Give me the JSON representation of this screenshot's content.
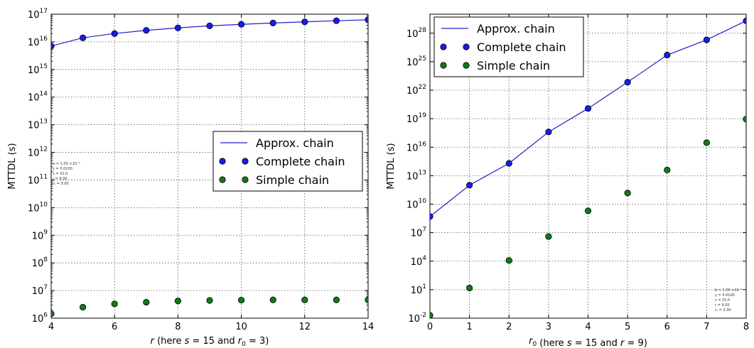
{
  "colors": {
    "approx": "#1f1fcc",
    "complete": "#1a1aee",
    "simple": "#127a12"
  },
  "chart_data": [
    {
      "type": "line",
      "yscale": "log",
      "xlabel": "r (here s = 15 and r0 = 3)",
      "xlabel_parts": {
        "var": "r",
        "mid": " (here ",
        "s": "s",
        "s_val": "15",
        "and": " and ",
        "r0": "r",
        "r0_sub": "0",
        "r0_val": "3",
        "end": ")"
      },
      "ylabel": "MTTDL (s)",
      "xlim": [
        4,
        14
      ],
      "ylim_exp": [
        6,
        17
      ],
      "xticks": [
        "4",
        "6",
        "8",
        "10",
        "12",
        "14"
      ],
      "ytick_exps": [
        "6",
        "7",
        "8",
        "9",
        "10",
        "11",
        "12",
        "13",
        "14",
        "15",
        "16",
        "17"
      ],
      "ytick_base": "10",
      "grid": true,
      "legend_position": "center-right",
      "legend": [
        "Approx. chain",
        "Complete chain",
        "Simple chain"
      ],
      "annotation": [
        "α = 1.00 ×10⁻³",
        "γ = 0.0100",
        "s = 15.0",
        "r = 9.00",
        "r₀ = 3.00"
      ],
      "series": [
        {
          "name": "Approx. chain",
          "kind": "line",
          "x": [
            4,
            5,
            6,
            7,
            8,
            9,
            10,
            11,
            12,
            13,
            14
          ],
          "y": [
            7000000000000000.0,
            1.4e+16,
            2e+16,
            2.6e+16,
            3.2e+16,
            3.8e+16,
            4.3e+16,
            4.8e+16,
            5.3e+16,
            5.8e+16,
            6.3e+16
          ]
        },
        {
          "name": "Complete chain",
          "kind": "marker",
          "x": [
            4,
            5,
            6,
            7,
            8,
            9,
            10,
            11,
            12,
            13,
            14
          ],
          "y": [
            7000000000000000.0,
            1.4e+16,
            2e+16,
            2.6e+16,
            3.2e+16,
            3.8e+16,
            4.3e+16,
            4.8e+16,
            5.3e+16,
            5.8e+16,
            6.3e+16
          ]
        },
        {
          "name": "Simple chain",
          "kind": "marker",
          "x": [
            4,
            5,
            6,
            7,
            8,
            9,
            10,
            11,
            12,
            13,
            14
          ],
          "y": [
            1450000.0,
            2500000.0,
            3300000.0,
            3800000.0,
            4200000.0,
            4400000.0,
            4500000.0,
            4600000.0,
            4600000.0,
            4600000.0,
            4600000.0
          ]
        }
      ]
    },
    {
      "type": "line",
      "yscale": "log",
      "xlabel": "r0 (here s = 15 and r = 9)",
      "xlabel_parts": {
        "var": "r",
        "var_sub": "0",
        "mid": " (here ",
        "s": "s",
        "s_val": "15",
        "and": " and ",
        "r": "r",
        "r_val": "9",
        "end": ")"
      },
      "ylabel": "MTTDL (s)",
      "xlim": [
        0,
        8
      ],
      "ylim_exp": [
        -2,
        30
      ],
      "xticks": [
        "0",
        "1",
        "2",
        "3",
        "4",
        "5",
        "6",
        "7",
        "8"
      ],
      "ytick_exps": [
        "-2",
        "1",
        "4",
        "7",
        "10",
        "13",
        "16",
        "19",
        "22",
        "25",
        "28"
      ],
      "ytick_base": "10",
      "grid": true,
      "legend_position": "upper-left",
      "legend": [
        "Approx. chain",
        "Complete chain",
        "Simple chain"
      ],
      "annotation": [
        "b = 1.00 ×10⁻³",
        "γ = 0.0100",
        "s = 15.0",
        "r = 9.00",
        "r₀ = 3.00"
      ],
      "series": [
        {
          "name": "Approx. chain",
          "kind": "line",
          "x": [
            0,
            1,
            2,
            3,
            4,
            5,
            6,
            7,
            8
          ],
          "y": [
            500000000.0,
            1000000000000.0,
            200000000000000.0,
            4e+17,
            1.2e+20,
            7e+22,
            5e+25,
            2e+27,
            2e+29
          ]
        },
        {
          "name": "Complete chain",
          "kind": "marker",
          "x": [
            0,
            1,
            2,
            3,
            4,
            5,
            6,
            7,
            8
          ],
          "y": [
            500000000.0,
            1000000000000.0,
            200000000000000.0,
            4e+17,
            1.2e+20,
            7e+22,
            5e+25,
            2e+27,
            2e+29
          ]
        },
        {
          "name": "Simple chain",
          "kind": "marker",
          "x": [
            0,
            1,
            2,
            3,
            4,
            5,
            6,
            7,
            8
          ],
          "y": [
            0.02,
            15,
            12000.0,
            4000000.0,
            2000000000.0,
            150000000000.0,
            40000000000000.0,
            3e+16,
            9e+18
          ]
        }
      ]
    }
  ]
}
